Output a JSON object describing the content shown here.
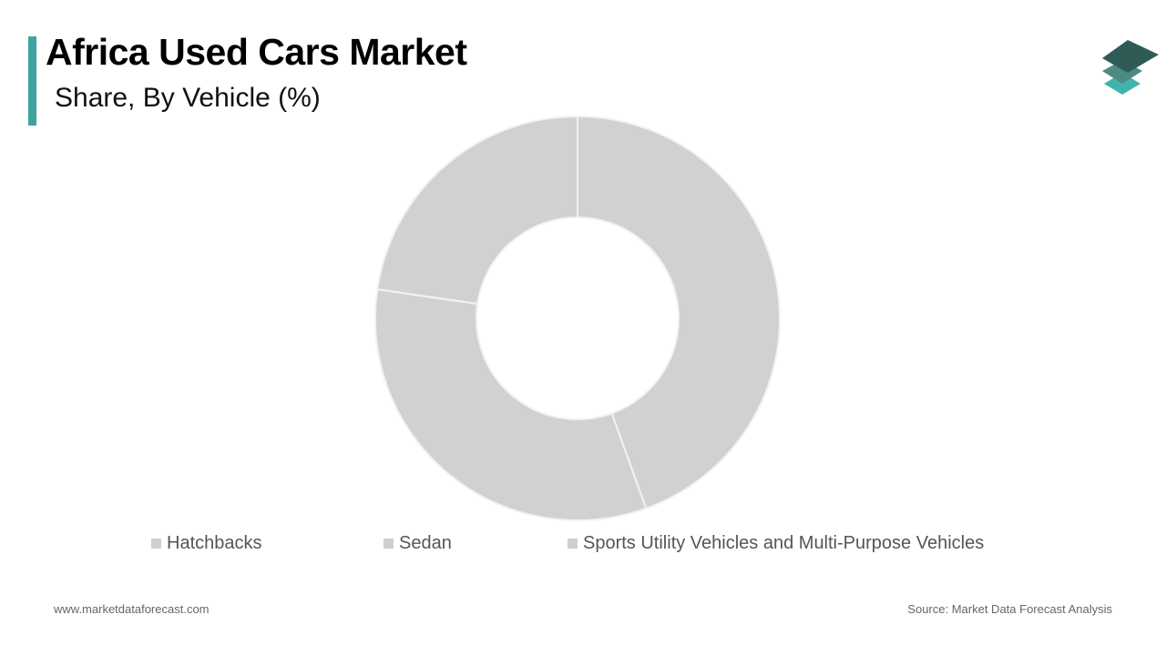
{
  "header": {
    "title": "Africa Used Cars Market",
    "subtitle": "Share, By Vehicle (%)"
  },
  "logo": {
    "icon": "stacked-layers-logo-icon",
    "colors": [
      "#2f5b56",
      "#4e8a84",
      "#3fb3ac"
    ]
  },
  "chart_data": {
    "type": "pie",
    "variant": "donut",
    "title": "Africa Used Cars Market",
    "subtitle": "Share, By Vehicle (%)",
    "categories": [
      "Hatchbacks",
      "Sedan",
      "Sports Utility Vehicles and Multi-Purpose Vehicles"
    ],
    "values": [
      44.5,
      32.8,
      22.7
    ],
    "unit": "%",
    "colors": [
      "#d2d1d2",
      "#d2d1d2",
      "#d2d1d2"
    ],
    "slice_border_color": "#f2f2f2",
    "legend_position": "bottom",
    "start_angle": "12 o'clock",
    "direction": "clockwise"
  },
  "colors": {
    "accent": "#3ca3a0",
    "legend_swatch": "#cfcfcf"
  },
  "footer": {
    "website": "www.marketdataforecast.com",
    "source": "Source: Market Data Forecast Analysis"
  }
}
